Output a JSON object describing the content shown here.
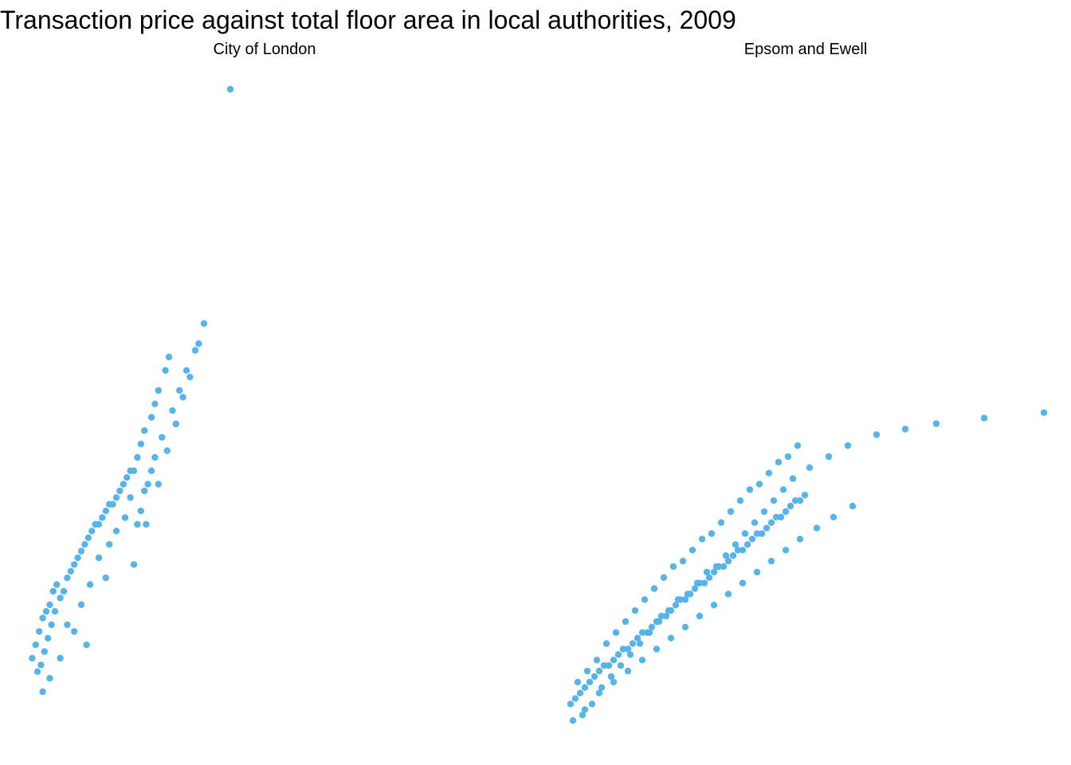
{
  "title": "Transaction price against total floor area in local authorities, 2009",
  "point_color": "#56B4E9",
  "chart_data": [
    {
      "type": "scatter",
      "panel": "City of London",
      "note": "values in relative units (0-1) along each axis; axes not shown",
      "x": [
        0.02,
        0.04,
        0.06,
        0.08,
        0.1,
        0.12,
        0.14,
        0.16,
        0.05,
        0.07,
        0.09,
        0.11,
        0.13,
        0.15,
        0.18,
        0.2,
        0.22,
        0.24,
        0.26,
        0.28,
        0.3,
        0.32,
        0.34,
        0.36,
        0.38,
        0.4,
        0.42,
        0.44,
        0.46,
        0.48,
        0.5,
        0.52,
        0.54,
        0.56,
        0.58,
        0.6,
        0.62,
        0.64,
        0.66,
        0.7,
        0.72,
        0.74,
        0.78,
        0.8,
        0.62,
        0.64,
        0.66,
        0.68,
        0.7,
        0.72,
        0.76,
        0.82,
        0.86,
        0.9,
        0.95,
        0.6,
        0.44,
        0.3,
        0.26,
        0.33,
        0.12,
        0.08,
        0.18,
        0.22,
        0.35,
        0.4,
        0.46,
        0.5,
        0.55,
        0.58,
        0.67,
        0.74,
        0.79,
        0.84,
        0.88,
        0.92,
        0.97,
        1.0,
        1.15
      ],
      "y": [
        0.1,
        0.12,
        0.14,
        0.16,
        0.17,
        0.18,
        0.2,
        0.21,
        0.08,
        0.09,
        0.11,
        0.13,
        0.15,
        0.17,
        0.19,
        0.2,
        0.22,
        0.23,
        0.24,
        0.25,
        0.26,
        0.27,
        0.28,
        0.29,
        0.3,
        0.3,
        0.31,
        0.32,
        0.33,
        0.33,
        0.34,
        0.35,
        0.36,
        0.37,
        0.38,
        0.38,
        0.4,
        0.42,
        0.44,
        0.46,
        0.48,
        0.5,
        0.53,
        0.55,
        0.3,
        0.32,
        0.35,
        0.36,
        0.38,
        0.4,
        0.43,
        0.47,
        0.5,
        0.53,
        0.56,
        0.24,
        0.22,
        0.18,
        0.14,
        0.12,
        0.07,
        0.05,
        0.1,
        0.15,
        0.21,
        0.25,
        0.27,
        0.29,
        0.31,
        0.34,
        0.3,
        0.36,
        0.41,
        0.45,
        0.49,
        0.52,
        0.57,
        0.6,
        0.95
      ]
    },
    {
      "type": "scatter",
      "panel": "Epsom and Ewell",
      "note": "values in relative units (0-1) along each axis; axes not shown",
      "x": [
        0.02,
        0.04,
        0.06,
        0.08,
        0.1,
        0.12,
        0.14,
        0.16,
        0.18,
        0.2,
        0.22,
        0.24,
        0.26,
        0.28,
        0.3,
        0.32,
        0.34,
        0.36,
        0.38,
        0.4,
        0.42,
        0.44,
        0.46,
        0.48,
        0.5,
        0.52,
        0.54,
        0.56,
        0.58,
        0.6,
        0.62,
        0.64,
        0.66,
        0.68,
        0.7,
        0.72,
        0.74,
        0.76,
        0.78,
        0.8,
        0.82,
        0.84,
        0.86,
        0.88,
        0.9,
        0.92,
        0.94,
        0.96,
        0.98,
        1.0,
        0.05,
        0.09,
        0.13,
        0.17,
        0.21,
        0.25,
        0.29,
        0.33,
        0.37,
        0.41,
        0.45,
        0.49,
        0.53,
        0.57,
        0.61,
        0.65,
        0.69,
        0.73,
        0.77,
        0.81,
        0.85,
        0.89,
        0.93,
        0.97,
        0.07,
        0.11,
        0.15,
        0.19,
        0.23,
        0.27,
        0.31,
        0.35,
        0.39,
        0.43,
        0.47,
        0.51,
        0.55,
        0.59,
        0.63,
        0.67,
        0.71,
        0.75,
        0.79,
        0.83,
        0.87,
        0.91,
        0.95,
        1.02,
        1.1,
        1.18,
        1.3,
        1.42,
        1.55,
        1.75,
        2.0,
        0.03,
        0.08,
        0.14,
        0.2,
        0.26,
        0.32,
        0.38,
        0.44,
        0.5,
        0.56,
        0.62,
        0.68,
        0.74,
        0.8,
        0.86,
        0.92,
        0.98,
        1.05,
        1.12,
        1.2
      ],
      "y": [
        0.05,
        0.06,
        0.07,
        0.08,
        0.09,
        0.1,
        0.11,
        0.12,
        0.12,
        0.13,
        0.14,
        0.15,
        0.15,
        0.16,
        0.17,
        0.18,
        0.18,
        0.19,
        0.2,
        0.21,
        0.21,
        0.22,
        0.23,
        0.24,
        0.24,
        0.25,
        0.26,
        0.27,
        0.27,
        0.28,
        0.29,
        0.3,
        0.3,
        0.31,
        0.32,
        0.33,
        0.33,
        0.34,
        0.35,
        0.36,
        0.36,
        0.37,
        0.38,
        0.39,
        0.39,
        0.4,
        0.41,
        0.42,
        0.42,
        0.43,
        0.09,
        0.11,
        0.13,
        0.16,
        0.18,
        0.2,
        0.22,
        0.24,
        0.26,
        0.28,
        0.3,
        0.31,
        0.33,
        0.35,
        0.36,
        0.38,
        0.4,
        0.42,
        0.44,
        0.45,
        0.47,
        0.49,
        0.5,
        0.52,
        0.03,
        0.05,
        0.08,
        0.1,
        0.12,
        0.14,
        0.16,
        0.18,
        0.2,
        0.22,
        0.24,
        0.25,
        0.27,
        0.29,
        0.3,
        0.32,
        0.34,
        0.36,
        0.38,
        0.4,
        0.42,
        0.44,
        0.46,
        0.48,
        0.5,
        0.52,
        0.54,
        0.55,
        0.56,
        0.57,
        0.58,
        0.02,
        0.04,
        0.07,
        0.09,
        0.11,
        0.13,
        0.15,
        0.17,
        0.19,
        0.21,
        0.23,
        0.25,
        0.27,
        0.29,
        0.31,
        0.33,
        0.35,
        0.37,
        0.39,
        0.41
      ]
    }
  ]
}
